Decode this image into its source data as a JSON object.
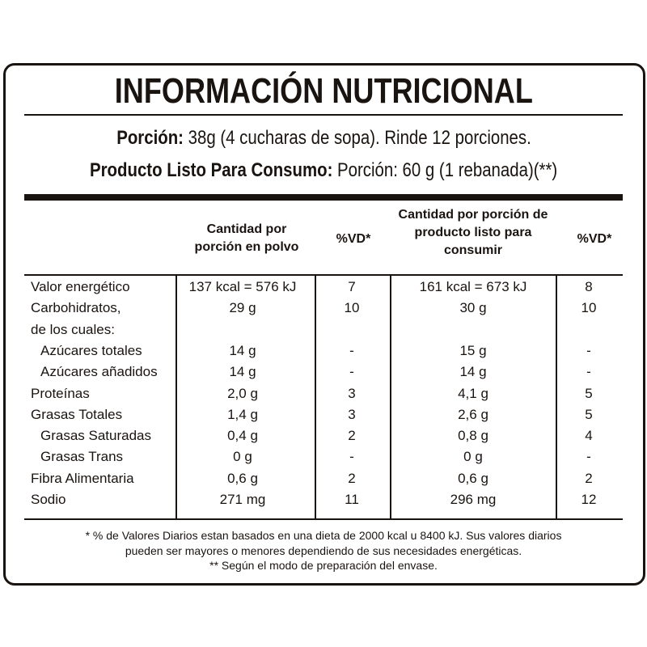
{
  "title": "INFORMACIÓN NUTRICIONAL",
  "serving": [
    {
      "label": "Porción:",
      "text": "38g (4 cucharas de sopa). Rinde 12 porciones."
    },
    {
      "label": "Producto Listo Para Consumo:",
      "text": "Porción: 60 g (1 rebanada)(**)"
    }
  ],
  "table": {
    "headers": [
      "Cantidad por porción en polvo",
      "%VD*",
      "Cantidad por porción de producto listo para consumir",
      "%VD*"
    ],
    "rows": [
      {
        "label": "Valor energético",
        "values": [
          "137 kcal = 576 kJ",
          "7",
          "161 kcal = 673 kJ",
          "8"
        ]
      },
      {
        "label": "Carbohidratos,",
        "values": [
          "29 g",
          "10",
          "30 g",
          "10"
        ]
      },
      {
        "label": "de los cuales:"
      },
      {
        "label": "Azúcares totales",
        "values": [
          "14 g",
          "-",
          "15 g",
          "-"
        ]
      },
      {
        "label": "Azúcares añadidos",
        "values": [
          "14 g",
          "-",
          "14 g",
          "-"
        ]
      },
      {
        "label": "Proteínas",
        "values": [
          "2,0 g",
          "3",
          "4,1 g",
          "5"
        ]
      },
      {
        "label": "Grasas Totales",
        "values": [
          "1,4 g",
          "3",
          "2,6 g",
          "5"
        ]
      },
      {
        "label": "Grasas Saturadas",
        "values": [
          "0,4 g",
          "2",
          "0,8 g",
          "4"
        ]
      },
      {
        "label": "Grasas Trans",
        "values": [
          "0 g",
          "-",
          "0 g",
          "-"
        ]
      },
      {
        "label": "Fibra Alimentaria",
        "values": [
          "0,6 g",
          "2",
          "0,6 g",
          "2"
        ]
      },
      {
        "label": "Sodio",
        "values": [
          "271 mg",
          "11",
          "296 mg",
          "12"
        ]
      }
    ]
  },
  "footnotes": [
    "* % de Valores Diarios estan basados en una dieta de 2000 kcal u 8400 kJ. Sus valores diarios",
    "pueden ser mayores o menores dependiendo de sus necesidades energéticas.",
    "** Según el modo de preparación del envase."
  ]
}
